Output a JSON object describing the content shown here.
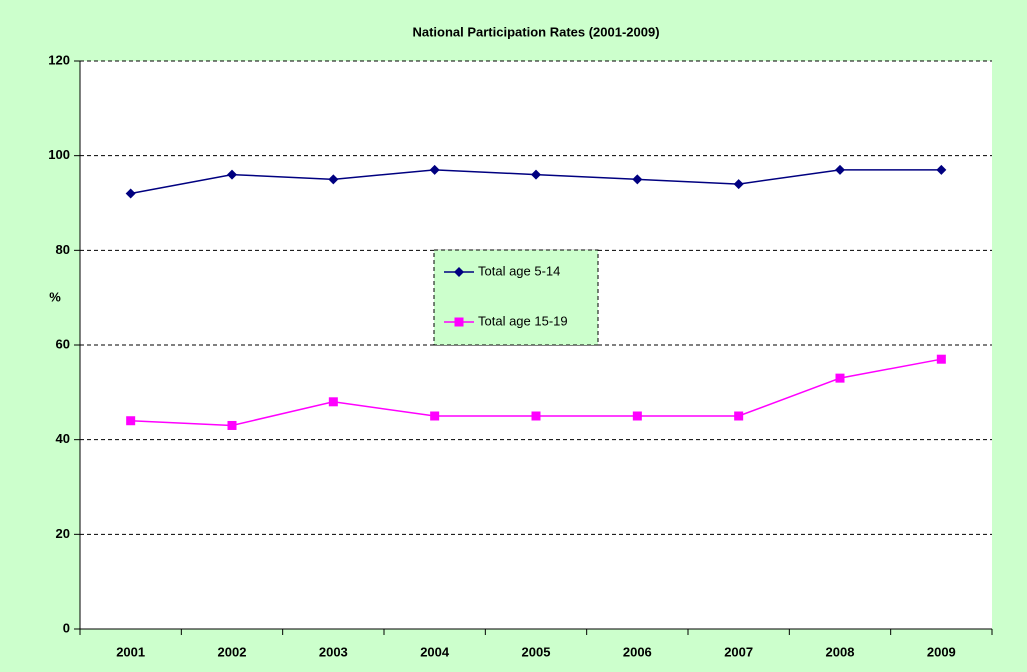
{
  "chart_data": {
    "type": "line",
    "title": "National Participation Rates (2001-2009)",
    "y_label": "%",
    "categories": [
      "2001",
      "2002",
      "2003",
      "2004",
      "2005",
      "2006",
      "2007",
      "2008",
      "2009"
    ],
    "series": [
      {
        "name": "Total age 5-14",
        "color": "#000080",
        "marker": "diamond",
        "values": [
          92,
          96,
          95,
          97,
          96,
          95,
          94,
          97,
          97
        ]
      },
      {
        "name": "Total age 15-19",
        "color": "#ff00ff",
        "marker": "square",
        "values": [
          44,
          43,
          48,
          45,
          45,
          45,
          45,
          53,
          57
        ]
      }
    ],
    "ylim": [
      0,
      120
    ],
    "yticks": [
      0,
      20,
      40,
      60,
      80,
      100,
      120
    ],
    "grid": true,
    "legend": "center"
  }
}
